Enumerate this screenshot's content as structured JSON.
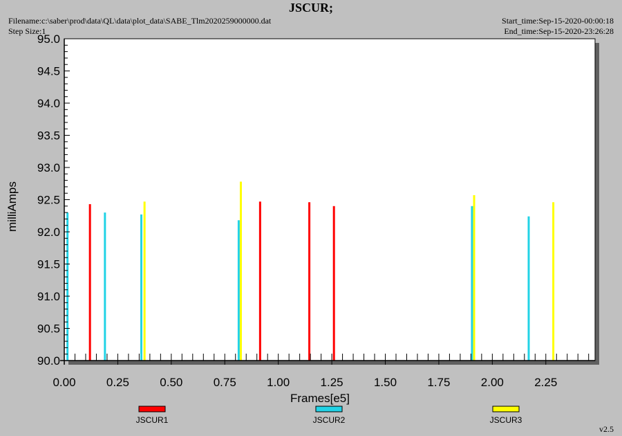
{
  "header": {
    "filename": "Filename:c:\\saber\\prod\\data\\QL\\data\\plot_data\\SABE_Tlm2020259000000.dat",
    "step_size": "Step Size:1",
    "start_time": "Start_time:Sep-15-2020-00:00:18",
    "end_time": "End_time:Sep-15-2020-23:26:28"
  },
  "version": "v2.5",
  "colors": {
    "background": "#c0c0c0",
    "plot": "#ffffff",
    "shadow": "#606060",
    "JSCUR1": "#ff0000",
    "JSCUR2": "#22d3e6",
    "JSCUR3": "#ffff00"
  },
  "chart_data": {
    "type": "bar",
    "title": "JSCUR;",
    "xlabel": "Frames[e5]",
    "ylabel": "milliAmps",
    "xlim": [
      0,
      2.48
    ],
    "ylim": [
      90.0,
      95.0
    ],
    "x_ticks": [
      "0.00",
      "0.25",
      "0.50",
      "0.75",
      "1.00",
      "1.25",
      "1.50",
      "1.75",
      "2.00",
      "2.25"
    ],
    "y_ticks": [
      "90.0",
      "90.5",
      "91.0",
      "91.5",
      "92.0",
      "92.5",
      "93.0",
      "93.5",
      "94.0",
      "94.5",
      "95.0"
    ],
    "legend_position": "bottom",
    "grid": false,
    "series": [
      {
        "name": "JSCUR1",
        "x": [
          0.12,
          0.915,
          1.145,
          1.26
        ],
        "y": [
          92.43,
          92.47,
          92.46,
          92.4
        ]
      },
      {
        "name": "JSCUR2",
        "x": [
          0.015,
          0.19,
          0.36,
          0.815,
          1.905,
          2.17
        ],
        "y": [
          92.3,
          92.3,
          92.27,
          92.18,
          92.4,
          92.24
        ]
      },
      {
        "name": "JSCUR3",
        "x": [
          0.375,
          0.825,
          1.915,
          2.285
        ],
        "y": [
          92.47,
          92.78,
          92.57,
          92.46
        ]
      }
    ]
  }
}
